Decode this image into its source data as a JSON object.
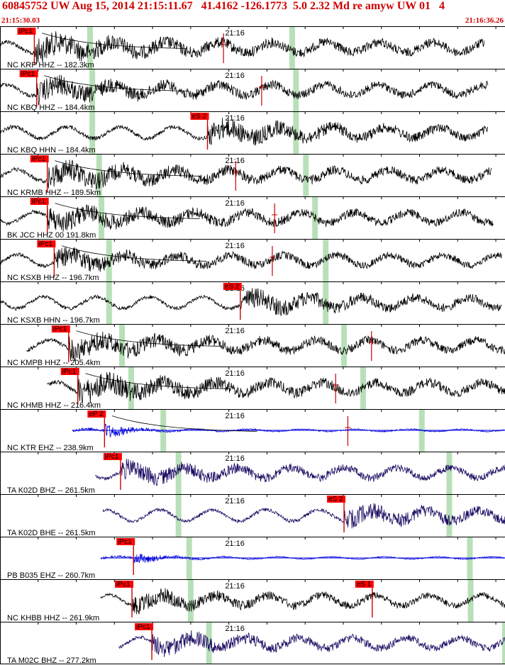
{
  "header": {
    "title": "60845752 UW Aug 15, 2014 21:15:11.67   41.4162 -126.1773  5.0 2.32 Md re amyw UW 01   4",
    "start_time": "21:15:30.03",
    "end_time": "21:16:36.26"
  },
  "colors": {
    "header": "#d00000",
    "pick_box": "#ff0000",
    "pick_line": "#cc0000",
    "phase_band": "#b8e0b8",
    "trace_black": "#000000",
    "trace_blue": "#0000dd",
    "trace_navy": "#1a0860",
    "baseline": "#0000dd"
  },
  "chart_data": {
    "type": "line",
    "title": "60845752 UW Aug 15, 2014 21:15:11.67   41.4162 -126.1773  5.0 2.32 Md re amyw UW 01   4",
    "xlabel": "",
    "ylabel": "",
    "x_start": "21:15:30.03",
    "x_end": "21:16:36.26",
    "tick_label": "21:16",
    "traces": [
      {
        "label": "NC KRP HHZ -- 182.3km",
        "color": "black",
        "start_s": 0,
        "end_s": 63.5,
        "amp": 0.8,
        "picks": [
          {
            "label": "iPc1",
            "t": 4.5
          }
        ],
        "extra_marks": [
          29.3
        ],
        "bands": [
          11.8,
          38.3
        ],
        "curve": true
      },
      {
        "label": "NC KBQ HHZ -- 184.4km",
        "color": "black",
        "start_s": 0,
        "end_s": 64,
        "amp": 0.7,
        "picks": [
          {
            "label": "iPc1",
            "t": 4.8
          }
        ],
        "extra_marks": [
          34.3
        ],
        "bands": [
          12.1,
          38.8
        ],
        "curve": true
      },
      {
        "label": "NC KBQ HHN -- 184.4km",
        "color": "black",
        "start_s": 0,
        "end_s": 64,
        "amp": 0.7,
        "picks": [
          {
            "label": "eS 2",
            "t": 27.2
          }
        ],
        "extra_marks": [],
        "bands": [
          12.1,
          38.8
        ],
        "curve": false
      },
      {
        "label": "NC KRMB HHZ -- 189.5km",
        "color": "black",
        "start_s": 0,
        "end_s": 64.5,
        "amp": 0.75,
        "picks": [
          {
            "label": "iPc1",
            "t": 6.2
          }
        ],
        "extra_marks": [
          30.9
        ],
        "bands": [
          13.0,
          40.1
        ],
        "curve": true
      },
      {
        "label": "BK JCC HHZ 00 191.8km",
        "color": "black",
        "start_s": 0,
        "end_s": 64.7,
        "amp": 0.7,
        "picks": [
          {
            "label": "iPc1",
            "t": 6.2
          }
        ],
        "extra_marks": [
          36.0
        ],
        "bands": [
          13.3,
          41.3
        ],
        "curve": true
      },
      {
        "label": "NC KSXB HHZ -- 196.7km",
        "color": "black",
        "start_s": 0,
        "end_s": 65.8,
        "amp": 0.6,
        "picks": [
          {
            "label": "iPc1",
            "t": 7.1
          }
        ],
        "extra_marks": [
          35.7
        ],
        "bands": [
          14.3,
          42.7
        ],
        "curve": true
      },
      {
        "label": "NC KSXB HHN -- 196.7km",
        "color": "black",
        "start_s": 0,
        "end_s": 65.8,
        "amp": 0.65,
        "picks": [
          {
            "label": "eS 2",
            "t": 31.5
          }
        ],
        "extra_marks": [],
        "bands": [
          14.3,
          42.7
        ],
        "curve": false
      },
      {
        "label": "NC KMPB HHZ -- 205.4km",
        "color": "black",
        "start_s": 3.5,
        "end_s": 67.2,
        "amp": 0.7,
        "picks": [
          {
            "label": "iPc1",
            "t": 9.0
          }
        ],
        "extra_marks": [
          48.7
        ],
        "bands": [
          16.0,
          45.1
        ],
        "curve": true
      },
      {
        "label": "NC KHMB HHZ -- 216.4km",
        "color": "black",
        "start_s": 6.2,
        "end_s": 68.7,
        "amp": 0.8,
        "picks": [
          {
            "label": "iPc1",
            "t": 10.2
          }
        ],
        "extra_marks": [
          44.0
        ],
        "bands": [
          17.2,
          47.6
        ],
        "curve": true
      },
      {
        "label": "NC KTR EHZ -- 238.9km",
        "color": "blue",
        "start_s": 9.5,
        "end_s": 72.8,
        "amp": 0.5,
        "picks": [
          {
            "label": "eP 2",
            "t": 13.7
          }
        ],
        "extra_marks": [
          45.6
        ],
        "bands": [
          21.4,
          55.3
        ],
        "curve": true
      },
      {
        "label": "TA K02D BHZ -- 261.5km",
        "color": "navy",
        "start_s": 12.5,
        "end_s": 74.8,
        "amp": 0.6,
        "picks": [
          {
            "label": "iPc1",
            "t": 15.8
          }
        ],
        "extra_marks": [],
        "bands": [
          23.4,
          58.9
        ],
        "curve": false
      },
      {
        "label": "TA K02D BHE -- 261.5km",
        "color": "navy",
        "start_s": 13.5,
        "end_s": 74.8,
        "amp": 0.6,
        "picks": [
          {
            "label": "eS 2",
            "t": 45.1
          }
        ],
        "extra_marks": [],
        "bands": [
          23.4,
          58.9
        ],
        "curve": false
      },
      {
        "label": "PB B035 EHZ -- 260.7km",
        "color": "blue",
        "start_s": 13.2,
        "end_s": 76.3,
        "amp": 0.4,
        "picks": [
          {
            "label": "iPc1",
            "t": 17.5
          }
        ],
        "extra_marks": [],
        "bands": [
          24.8,
          61.6
        ],
        "curve": false
      },
      {
        "label": "NC KHBB HHZ -- 261.9km",
        "color": "black",
        "start_s": 13.2,
        "end_s": 76.3,
        "amp": 0.55,
        "picks": [
          {
            "label": "iPc1",
            "t": 17.3
          },
          {
            "label": "eS 1",
            "t": 48.8
          }
        ],
        "extra_marks": [],
        "bands": [
          25.0,
          61.7
        ],
        "curve": false
      },
      {
        "label": "TA M02C BHZ -- 277.2km",
        "color": "navy",
        "start_s": 15.6,
        "end_s": 76.3,
        "amp": 0.6,
        "picks": [
          {
            "label": "iPc1",
            "t": 19.9
          }
        ],
        "extra_marks": [],
        "bands": [
          27.4,
          66.2
        ],
        "curve": false
      }
    ]
  }
}
